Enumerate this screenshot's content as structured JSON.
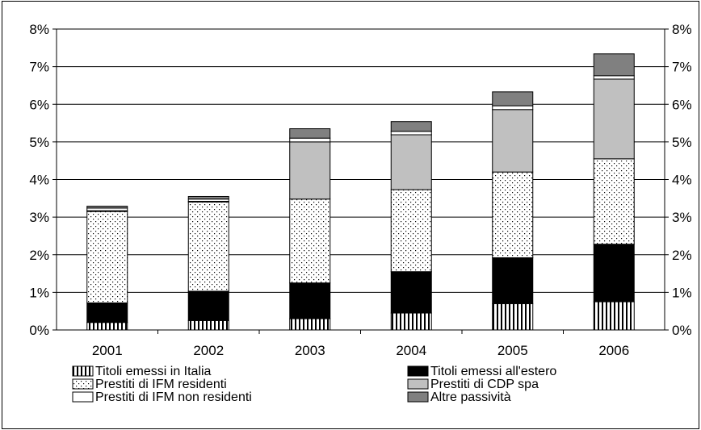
{
  "chart_data": {
    "type": "bar",
    "stacked": true,
    "categories": [
      "2001",
      "2002",
      "2003",
      "2004",
      "2005",
      "2006"
    ],
    "series": [
      {
        "name": "Titoli emessi in Italia",
        "pattern": "vertical-stripes",
        "color": "#ffffff",
        "values": [
          0.2,
          0.25,
          0.3,
          0.45,
          0.7,
          0.75
        ]
      },
      {
        "name": "Titoli emessi all'estero",
        "pattern": "solid",
        "color": "#000000",
        "values": [
          0.52,
          0.78,
          0.95,
          1.1,
          1.22,
          1.53
        ]
      },
      {
        "name": "Prestiti di IFM residenti",
        "pattern": "dots",
        "color": "#ffffff",
        "values": [
          2.43,
          2.37,
          2.23,
          2.18,
          2.28,
          2.27
        ]
      },
      {
        "name": "Prestiti di CDP spa",
        "pattern": "solid",
        "color": "#c0c0c0",
        "values": [
          0.02,
          0.02,
          1.52,
          1.46,
          1.66,
          2.12
        ]
      },
      {
        "name": "Prestiti di IFM non residenti",
        "pattern": "solid",
        "color": "#ffffff",
        "values": [
          0.07,
          0.06,
          0.1,
          0.09,
          0.1,
          0.09
        ]
      },
      {
        "name": "Altre passività",
        "pattern": "solid",
        "color": "#808080",
        "values": [
          0.05,
          0.07,
          0.25,
          0.26,
          0.37,
          0.58
        ]
      }
    ],
    "y_ticks": [
      "0%",
      "1%",
      "2%",
      "3%",
      "4%",
      "5%",
      "6%",
      "7%",
      "8%"
    ],
    "ylim": [
      0,
      8
    ],
    "grid": true,
    "legend_position": "bottom",
    "legend_rows": [
      [
        "Titoli emessi in Italia",
        "Titoli emessi all'estero"
      ],
      [
        "Prestiti di IFM residenti",
        "Prestiti di CDP spa"
      ],
      [
        "Prestiti di IFM non residenti",
        "Altre passività"
      ]
    ]
  }
}
